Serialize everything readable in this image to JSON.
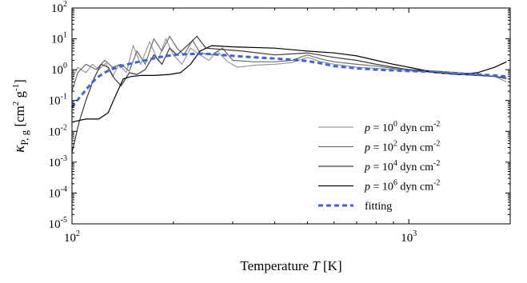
{
  "chart_data": {
    "type": "line",
    "xlabel": {
      "text": "Temperature ",
      "var": "T",
      "unit": " [K]"
    },
    "ylabel": {
      "kappa": "κ",
      "sub": "P, g",
      "unit_open": " [cm",
      "unit_mid": " g",
      "unit_close": "]",
      "exp_cm": "2",
      "exp_g": "-1"
    },
    "xscale": "log",
    "yscale": "log",
    "xlim": [
      100,
      2000
    ],
    "ylim": [
      1e-05,
      100
    ],
    "x_ticks": [
      {
        "base": "10",
        "exp": "2",
        "value": 100
      },
      {
        "base": "10",
        "exp": "3",
        "value": 1000
      }
    ],
    "y_ticks": [
      {
        "base": "10",
        "exp": "-5",
        "value": 1e-05
      },
      {
        "base": "10",
        "exp": "-4",
        "value": 0.0001
      },
      {
        "base": "10",
        "exp": "-3",
        "value": 0.001
      },
      {
        "base": "10",
        "exp": "-2",
        "value": 0.01
      },
      {
        "base": "10",
        "exp": "-1",
        "value": 0.1
      },
      {
        "base": "10",
        "exp": "0",
        "value": 1
      },
      {
        "base": "10",
        "exp": "1",
        "value": 10
      },
      {
        "base": "10",
        "exp": "2",
        "value": 100
      }
    ],
    "legend_position": "bottom-right",
    "grid": false,
    "series": [
      {
        "name": "p = 10^0 dyn cm^-2",
        "label": {
          "var": "p",
          "eq": " = 10",
          "exp": "0",
          "unit": " dyn cm",
          "unit_exp": "-2"
        },
        "color": "#9a9a9a",
        "style": "solid",
        "points": [
          [
            100,
            0.5
          ],
          [
            104,
            1.2
          ],
          [
            110,
            0.8
          ],
          [
            115,
            1.5
          ],
          [
            120,
            1.0
          ],
          [
            126,
            1.6
          ],
          [
            132,
            0.6
          ],
          [
            138,
            1.5
          ],
          [
            145,
            0.8
          ],
          [
            152,
            6.0
          ],
          [
            160,
            1.5
          ],
          [
            170,
            8.0
          ],
          [
            180,
            2.0
          ],
          [
            190,
            10.0
          ],
          [
            200,
            3.0
          ],
          [
            212,
            1.5
          ],
          [
            225,
            5.0
          ],
          [
            240,
            3.0
          ],
          [
            255,
            2.0
          ],
          [
            270,
            4.0
          ],
          [
            290,
            1.8
          ],
          [
            310,
            1.2
          ],
          [
            350,
            1.4
          ],
          [
            400,
            1.5
          ],
          [
            450,
            1.7
          ],
          [
            500,
            2.5
          ],
          [
            550,
            1.8
          ],
          [
            600,
            1.5
          ],
          [
            700,
            1.2
          ],
          [
            800,
            1.1
          ],
          [
            900,
            1.0
          ],
          [
            1000,
            0.9
          ],
          [
            1200,
            0.85
          ],
          [
            1400,
            0.7
          ],
          [
            1600,
            0.7
          ],
          [
            1800,
            0.6
          ],
          [
            1950,
            0.4
          ]
        ]
      },
      {
        "name": "p = 10^2 dyn cm^-2",
        "label": {
          "var": "p",
          "eq": " = 10",
          "exp": "2",
          "unit": " dyn cm",
          "unit_exp": "-2"
        },
        "color": "#6e6e6e",
        "style": "solid",
        "points": [
          [
            100,
            0.2
          ],
          [
            104,
            0.8
          ],
          [
            110,
            1.5
          ],
          [
            118,
            1.0
          ],
          [
            125,
            2.0
          ],
          [
            132,
            1.2
          ],
          [
            140,
            1.5
          ],
          [
            148,
            0.9
          ],
          [
            156,
            4.0
          ],
          [
            165,
            1.5
          ],
          [
            175,
            10.0
          ],
          [
            185,
            4.0
          ],
          [
            195,
            12.0
          ],
          [
            205,
            5.0
          ],
          [
            215,
            3.0
          ],
          [
            228,
            9.0
          ],
          [
            240,
            3.5
          ],
          [
            260,
            3.0
          ],
          [
            280,
            5.0
          ],
          [
            300,
            2.0
          ],
          [
            350,
            1.8
          ],
          [
            400,
            1.8
          ],
          [
            450,
            2.0
          ],
          [
            500,
            3.0
          ],
          [
            550,
            2.2
          ],
          [
            600,
            1.8
          ],
          [
            700,
            1.5
          ],
          [
            800,
            1.3
          ],
          [
            900,
            1.1
          ],
          [
            1000,
            1.0
          ],
          [
            1200,
            0.9
          ],
          [
            1400,
            0.8
          ],
          [
            1600,
            0.7
          ],
          [
            1800,
            0.6
          ],
          [
            1950,
            0.5
          ]
        ]
      },
      {
        "name": "p = 10^4 dyn cm^-2",
        "label": {
          "var": "p",
          "eq": " = 10",
          "exp": "4",
          "unit": " dyn cm",
          "unit_exp": "-2"
        },
        "color": "#3a3a3a",
        "style": "solid",
        "points": [
          [
            100,
            0.002
          ],
          [
            105,
            0.02
          ],
          [
            110,
            0.1
          ],
          [
            116,
            0.5
          ],
          [
            122,
            1.5
          ],
          [
            128,
            1.2
          ],
          [
            134,
            0.5
          ],
          [
            140,
            0.3
          ],
          [
            148,
            0.8
          ],
          [
            156,
            0.7
          ],
          [
            165,
            1.0
          ],
          [
            175,
            3.0
          ],
          [
            185,
            1.5
          ],
          [
            195,
            5.0
          ],
          [
            205,
            3.0
          ],
          [
            220,
            6.0
          ],
          [
            235,
            12.0
          ],
          [
            250,
            5.0
          ],
          [
            280,
            4.5
          ],
          [
            320,
            4.0
          ],
          [
            400,
            3.0
          ],
          [
            500,
            3.5
          ],
          [
            600,
            2.5
          ],
          [
            700,
            2.0
          ],
          [
            800,
            1.5
          ],
          [
            900,
            1.2
          ],
          [
            1000,
            1.0
          ],
          [
            1200,
            0.8
          ],
          [
            1400,
            0.7
          ],
          [
            1600,
            0.65
          ],
          [
            1800,
            0.6
          ],
          [
            1950,
            0.55
          ]
        ]
      },
      {
        "name": "p = 10^6 dyn cm^-2",
        "label": {
          "var": "p",
          "eq": " = 10",
          "exp": "6",
          "unit": " dyn cm",
          "unit_exp": "-2"
        },
        "color": "#000000",
        "style": "solid",
        "points": [
          [
            100,
            0.02
          ],
          [
            110,
            0.025
          ],
          [
            120,
            0.025
          ],
          [
            128,
            0.04
          ],
          [
            135,
            0.15
          ],
          [
            142,
            0.5
          ],
          [
            150,
            0.6
          ],
          [
            160,
            0.65
          ],
          [
            175,
            0.65
          ],
          [
            195,
            0.7
          ],
          [
            210,
            0.8
          ],
          [
            225,
            1.5
          ],
          [
            240,
            4.0
          ],
          [
            260,
            6.0
          ],
          [
            300,
            5.5
          ],
          [
            400,
            5.0
          ],
          [
            500,
            4.0
          ],
          [
            600,
            3.5
          ],
          [
            700,
            2.8
          ],
          [
            800,
            2.0
          ],
          [
            900,
            1.5
          ],
          [
            1000,
            1.2
          ],
          [
            1200,
            0.8
          ],
          [
            1400,
            0.7
          ],
          [
            1600,
            0.8
          ],
          [
            1800,
            1.2
          ],
          [
            1950,
            1.8
          ]
        ]
      },
      {
        "name": "fitting",
        "label": {
          "text": "fitting"
        },
        "color": "#3a64d8",
        "style": "dashed",
        "points": [
          [
            100,
            0.06
          ],
          [
            105,
            0.12
          ],
          [
            110,
            0.22
          ],
          [
            115,
            0.4
          ],
          [
            120,
            0.6
          ],
          [
            125,
            0.8
          ],
          [
            130,
            1.0
          ],
          [
            140,
            1.3
          ],
          [
            150,
            1.6
          ],
          [
            165,
            2.0
          ],
          [
            180,
            2.5
          ],
          [
            200,
            3.0
          ],
          [
            220,
            3.2
          ],
          [
            240,
            3.3
          ],
          [
            260,
            3.2
          ],
          [
            300,
            2.8
          ],
          [
            350,
            2.5
          ],
          [
            400,
            2.3
          ],
          [
            450,
            2.1
          ],
          [
            500,
            1.9
          ],
          [
            550,
            1.6
          ],
          [
            600,
            1.3
          ],
          [
            700,
            1.1
          ],
          [
            800,
            1.0
          ],
          [
            900,
            0.95
          ],
          [
            1000,
            0.9
          ],
          [
            1200,
            0.85
          ],
          [
            1400,
            0.75
          ],
          [
            1600,
            0.7
          ],
          [
            1800,
            0.65
          ],
          [
            1950,
            0.6
          ]
        ]
      }
    ]
  }
}
